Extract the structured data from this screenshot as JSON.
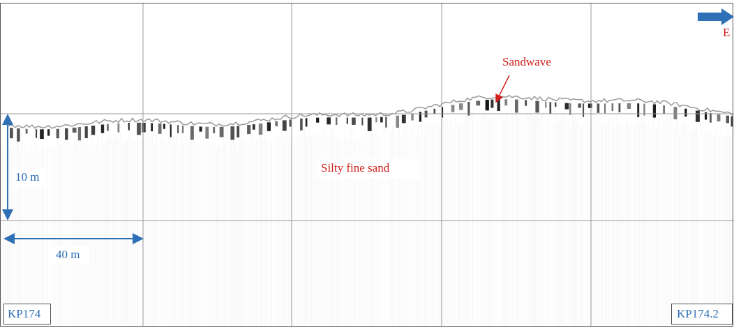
{
  "annotations": {
    "direction": "E",
    "feature": "Sandwave",
    "sediment": "Silty fine sand"
  },
  "scale": {
    "vertical": "10 m",
    "horizontal": "40 m"
  },
  "stations": {
    "start": "KP174",
    "end": "KP174.2"
  }
}
